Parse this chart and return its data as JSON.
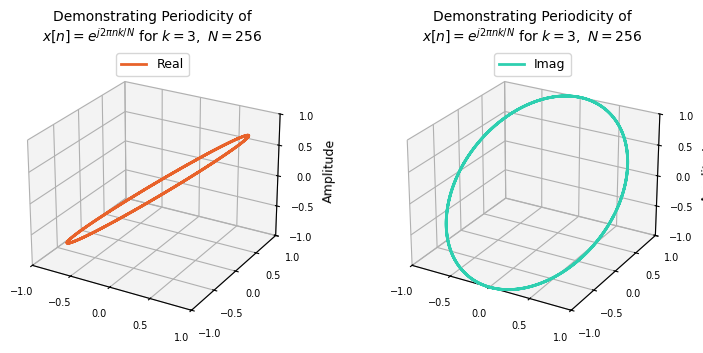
{
  "title_line1": "Demonstrating Periodicity of",
  "k": 3,
  "N": 256,
  "real_color": "#E8622A",
  "imag_color": "#2ECFB0",
  "zlabel": "Amplitude",
  "real_label": "Real",
  "imag_label": "Imag",
  "zlim": [
    -1.0,
    1.0
  ],
  "xlim": [
    -1.0,
    1.0
  ],
  "ylim": [
    -1.0,
    1.0
  ],
  "zticks": [
    -1.0,
    -0.5,
    0.0,
    0.5,
    1.0
  ],
  "xticks": [
    -1.0,
    -0.5,
    0.0,
    0.5,
    1.0
  ],
  "yticks": [
    -1.0,
    -0.5,
    0.0,
    0.5,
    1.0
  ],
  "title_fontsize": 10,
  "legend_fontsize": 9,
  "elev": 25,
  "azim": -60,
  "linewidth": 2.0
}
